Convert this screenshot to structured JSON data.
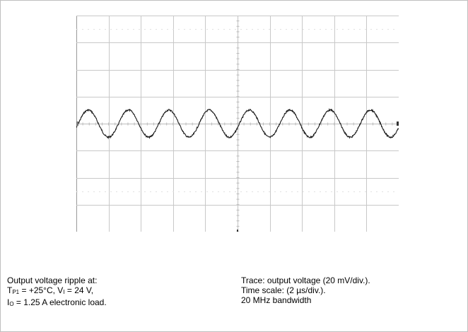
{
  "chart_data": {
    "type": "line",
    "title": "",
    "grid": true,
    "divisions": {
      "x": 10,
      "y": 8
    },
    "waveform": {
      "kind": "sine",
      "cycles": 8,
      "amplitude_div": 0.7,
      "offset_div": 0.0
    },
    "trace_color": "#1a1a1a",
    "grid_color": "#c8c8c8"
  },
  "caption": {
    "left": {
      "line1": "Output voltage ripple  at:",
      "line2_a": "T",
      "line2_sub": "P1",
      "line2_b": " = +25°C, V",
      "line2_sub2": "I",
      "line2_c": " = 24 V,",
      "line3_a": "I",
      "line3_sub": "O",
      "line3_b": " = 1.25 A electronic load."
    },
    "right": {
      "line1": "Trace: output voltage (20 mV/div.).",
      "line2": "Time scale: (2 µs/div.).",
      "line3": "20 MHz bandwidth"
    }
  }
}
